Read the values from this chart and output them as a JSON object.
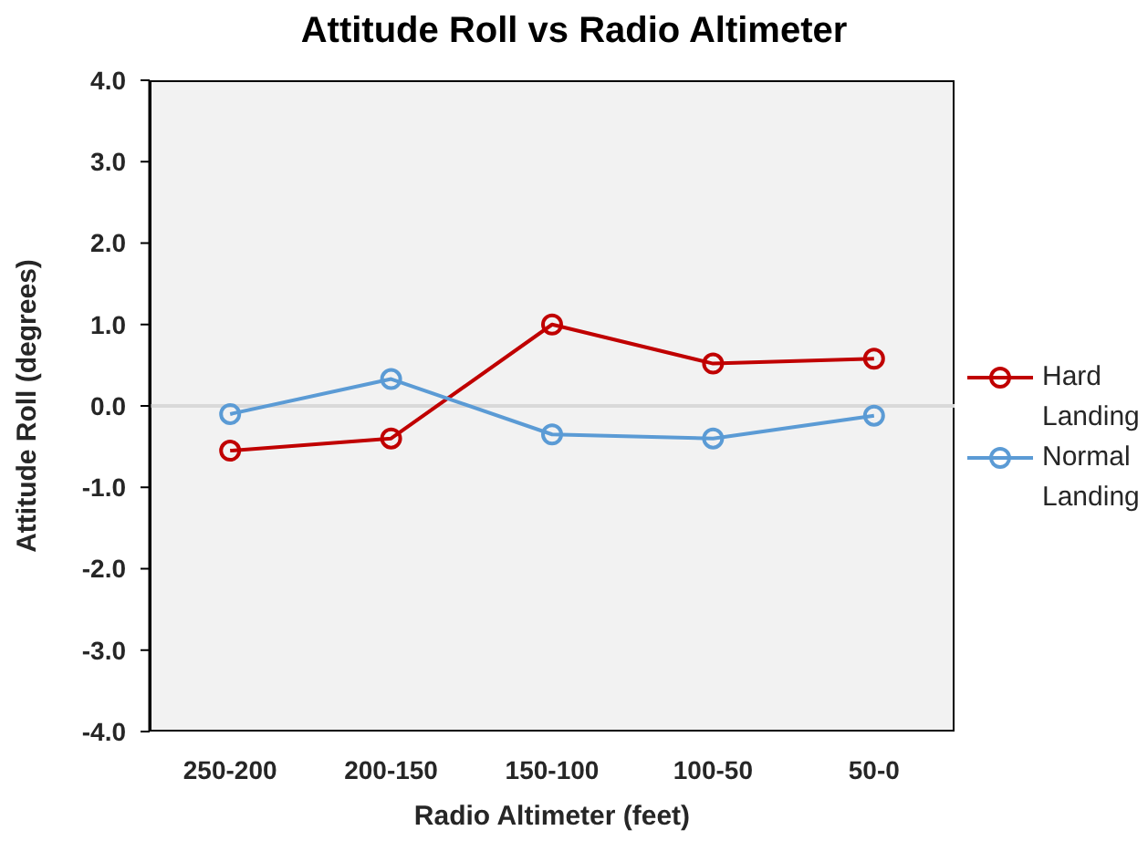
{
  "chart_data": {
    "type": "line",
    "title": "Attitude Roll vs Radio Altimeter",
    "xlabel": "Radio Altimeter (feet)",
    "ylabel": "Attitude Roll (degrees)",
    "categories": [
      "250-200",
      "200-150",
      "150-100",
      "100-50",
      "50-0"
    ],
    "series": [
      {
        "name": "Hard Landing",
        "color": "#c00000",
        "values": [
          -0.55,
          -0.4,
          1.0,
          0.52,
          0.58
        ]
      },
      {
        "name": "Normal Landing",
        "color": "#5b9bd5",
        "values": [
          -0.1,
          0.33,
          -0.35,
          -0.4,
          -0.12
        ]
      }
    ],
    "ylim": [
      -4,
      4
    ],
    "yticks": [
      {
        "value": -4,
        "label": "-4.0"
      },
      {
        "value": -3,
        "label": "-3.0"
      },
      {
        "value": -2,
        "label": "-2.0"
      },
      {
        "value": -1,
        "label": "-1.0"
      },
      {
        "value": 0,
        "label": "0.0"
      },
      {
        "value": 1,
        "label": "1.0"
      },
      {
        "value": 2,
        "label": "2.0"
      },
      {
        "value": 3,
        "label": "3.0"
      },
      {
        "value": 4,
        "label": "4.0"
      }
    ],
    "ref_lines": [
      {
        "axis": "y",
        "value": 0,
        "color": "#d9d9d9"
      }
    ],
    "grid": false,
    "legend": "right",
    "marker": "circle"
  }
}
